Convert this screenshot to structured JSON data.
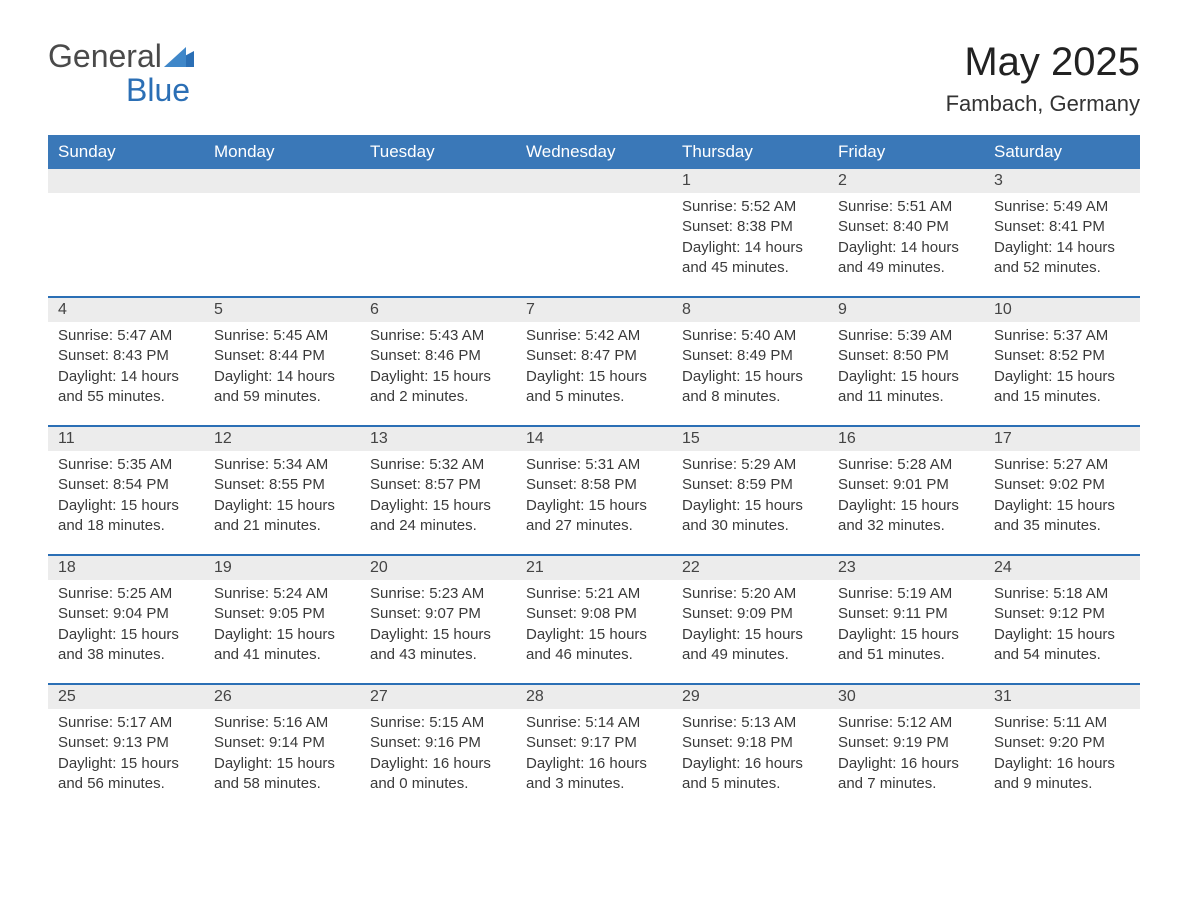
{
  "logo": {
    "word1": "General",
    "word2": "Blue"
  },
  "title": "May 2025",
  "location": "Fambach, Germany",
  "colors": {
    "header_bg": "#3a78b8",
    "header_text": "#ffffff",
    "accent_line": "#2b6fb5",
    "daynum_bg": "#ececec",
    "body_text": "#3a3a3a",
    "logo_blue": "#2b6fb5"
  },
  "weekdays": [
    "Sunday",
    "Monday",
    "Tuesday",
    "Wednesday",
    "Thursday",
    "Friday",
    "Saturday"
  ],
  "weeks": [
    [
      {
        "empty": true
      },
      {
        "empty": true
      },
      {
        "empty": true
      },
      {
        "empty": true
      },
      {
        "day": "1",
        "sunrise": "Sunrise: 5:52 AM",
        "sunset": "Sunset: 8:38 PM",
        "daylight1": "Daylight: 14 hours",
        "daylight2": "and 45 minutes."
      },
      {
        "day": "2",
        "sunrise": "Sunrise: 5:51 AM",
        "sunset": "Sunset: 8:40 PM",
        "daylight1": "Daylight: 14 hours",
        "daylight2": "and 49 minutes."
      },
      {
        "day": "3",
        "sunrise": "Sunrise: 5:49 AM",
        "sunset": "Sunset: 8:41 PM",
        "daylight1": "Daylight: 14 hours",
        "daylight2": "and 52 minutes."
      }
    ],
    [
      {
        "day": "4",
        "sunrise": "Sunrise: 5:47 AM",
        "sunset": "Sunset: 8:43 PM",
        "daylight1": "Daylight: 14 hours",
        "daylight2": "and 55 minutes."
      },
      {
        "day": "5",
        "sunrise": "Sunrise: 5:45 AM",
        "sunset": "Sunset: 8:44 PM",
        "daylight1": "Daylight: 14 hours",
        "daylight2": "and 59 minutes."
      },
      {
        "day": "6",
        "sunrise": "Sunrise: 5:43 AM",
        "sunset": "Sunset: 8:46 PM",
        "daylight1": "Daylight: 15 hours",
        "daylight2": "and 2 minutes."
      },
      {
        "day": "7",
        "sunrise": "Sunrise: 5:42 AM",
        "sunset": "Sunset: 8:47 PM",
        "daylight1": "Daylight: 15 hours",
        "daylight2": "and 5 minutes."
      },
      {
        "day": "8",
        "sunrise": "Sunrise: 5:40 AM",
        "sunset": "Sunset: 8:49 PM",
        "daylight1": "Daylight: 15 hours",
        "daylight2": "and 8 minutes."
      },
      {
        "day": "9",
        "sunrise": "Sunrise: 5:39 AM",
        "sunset": "Sunset: 8:50 PM",
        "daylight1": "Daylight: 15 hours",
        "daylight2": "and 11 minutes."
      },
      {
        "day": "10",
        "sunrise": "Sunrise: 5:37 AM",
        "sunset": "Sunset: 8:52 PM",
        "daylight1": "Daylight: 15 hours",
        "daylight2": "and 15 minutes."
      }
    ],
    [
      {
        "day": "11",
        "sunrise": "Sunrise: 5:35 AM",
        "sunset": "Sunset: 8:54 PM",
        "daylight1": "Daylight: 15 hours",
        "daylight2": "and 18 minutes."
      },
      {
        "day": "12",
        "sunrise": "Sunrise: 5:34 AM",
        "sunset": "Sunset: 8:55 PM",
        "daylight1": "Daylight: 15 hours",
        "daylight2": "and 21 minutes."
      },
      {
        "day": "13",
        "sunrise": "Sunrise: 5:32 AM",
        "sunset": "Sunset: 8:57 PM",
        "daylight1": "Daylight: 15 hours",
        "daylight2": "and 24 minutes."
      },
      {
        "day": "14",
        "sunrise": "Sunrise: 5:31 AM",
        "sunset": "Sunset: 8:58 PM",
        "daylight1": "Daylight: 15 hours",
        "daylight2": "and 27 minutes."
      },
      {
        "day": "15",
        "sunrise": "Sunrise: 5:29 AM",
        "sunset": "Sunset: 8:59 PM",
        "daylight1": "Daylight: 15 hours",
        "daylight2": "and 30 minutes."
      },
      {
        "day": "16",
        "sunrise": "Sunrise: 5:28 AM",
        "sunset": "Sunset: 9:01 PM",
        "daylight1": "Daylight: 15 hours",
        "daylight2": "and 32 minutes."
      },
      {
        "day": "17",
        "sunrise": "Sunrise: 5:27 AM",
        "sunset": "Sunset: 9:02 PM",
        "daylight1": "Daylight: 15 hours",
        "daylight2": "and 35 minutes."
      }
    ],
    [
      {
        "day": "18",
        "sunrise": "Sunrise: 5:25 AM",
        "sunset": "Sunset: 9:04 PM",
        "daylight1": "Daylight: 15 hours",
        "daylight2": "and 38 minutes."
      },
      {
        "day": "19",
        "sunrise": "Sunrise: 5:24 AM",
        "sunset": "Sunset: 9:05 PM",
        "daylight1": "Daylight: 15 hours",
        "daylight2": "and 41 minutes."
      },
      {
        "day": "20",
        "sunrise": "Sunrise: 5:23 AM",
        "sunset": "Sunset: 9:07 PM",
        "daylight1": "Daylight: 15 hours",
        "daylight2": "and 43 minutes."
      },
      {
        "day": "21",
        "sunrise": "Sunrise: 5:21 AM",
        "sunset": "Sunset: 9:08 PM",
        "daylight1": "Daylight: 15 hours",
        "daylight2": "and 46 minutes."
      },
      {
        "day": "22",
        "sunrise": "Sunrise: 5:20 AM",
        "sunset": "Sunset: 9:09 PM",
        "daylight1": "Daylight: 15 hours",
        "daylight2": "and 49 minutes."
      },
      {
        "day": "23",
        "sunrise": "Sunrise: 5:19 AM",
        "sunset": "Sunset: 9:11 PM",
        "daylight1": "Daylight: 15 hours",
        "daylight2": "and 51 minutes."
      },
      {
        "day": "24",
        "sunrise": "Sunrise: 5:18 AM",
        "sunset": "Sunset: 9:12 PM",
        "daylight1": "Daylight: 15 hours",
        "daylight2": "and 54 minutes."
      }
    ],
    [
      {
        "day": "25",
        "sunrise": "Sunrise: 5:17 AM",
        "sunset": "Sunset: 9:13 PM",
        "daylight1": "Daylight: 15 hours",
        "daylight2": "and 56 minutes."
      },
      {
        "day": "26",
        "sunrise": "Sunrise: 5:16 AM",
        "sunset": "Sunset: 9:14 PM",
        "daylight1": "Daylight: 15 hours",
        "daylight2": "and 58 minutes."
      },
      {
        "day": "27",
        "sunrise": "Sunrise: 5:15 AM",
        "sunset": "Sunset: 9:16 PM",
        "daylight1": "Daylight: 16 hours",
        "daylight2": "and 0 minutes."
      },
      {
        "day": "28",
        "sunrise": "Sunrise: 5:14 AM",
        "sunset": "Sunset: 9:17 PM",
        "daylight1": "Daylight: 16 hours",
        "daylight2": "and 3 minutes."
      },
      {
        "day": "29",
        "sunrise": "Sunrise: 5:13 AM",
        "sunset": "Sunset: 9:18 PM",
        "daylight1": "Daylight: 16 hours",
        "daylight2": "and 5 minutes."
      },
      {
        "day": "30",
        "sunrise": "Sunrise: 5:12 AM",
        "sunset": "Sunset: 9:19 PM",
        "daylight1": "Daylight: 16 hours",
        "daylight2": "and 7 minutes."
      },
      {
        "day": "31",
        "sunrise": "Sunrise: 5:11 AM",
        "sunset": "Sunset: 9:20 PM",
        "daylight1": "Daylight: 16 hours",
        "daylight2": "and 9 minutes."
      }
    ]
  ]
}
